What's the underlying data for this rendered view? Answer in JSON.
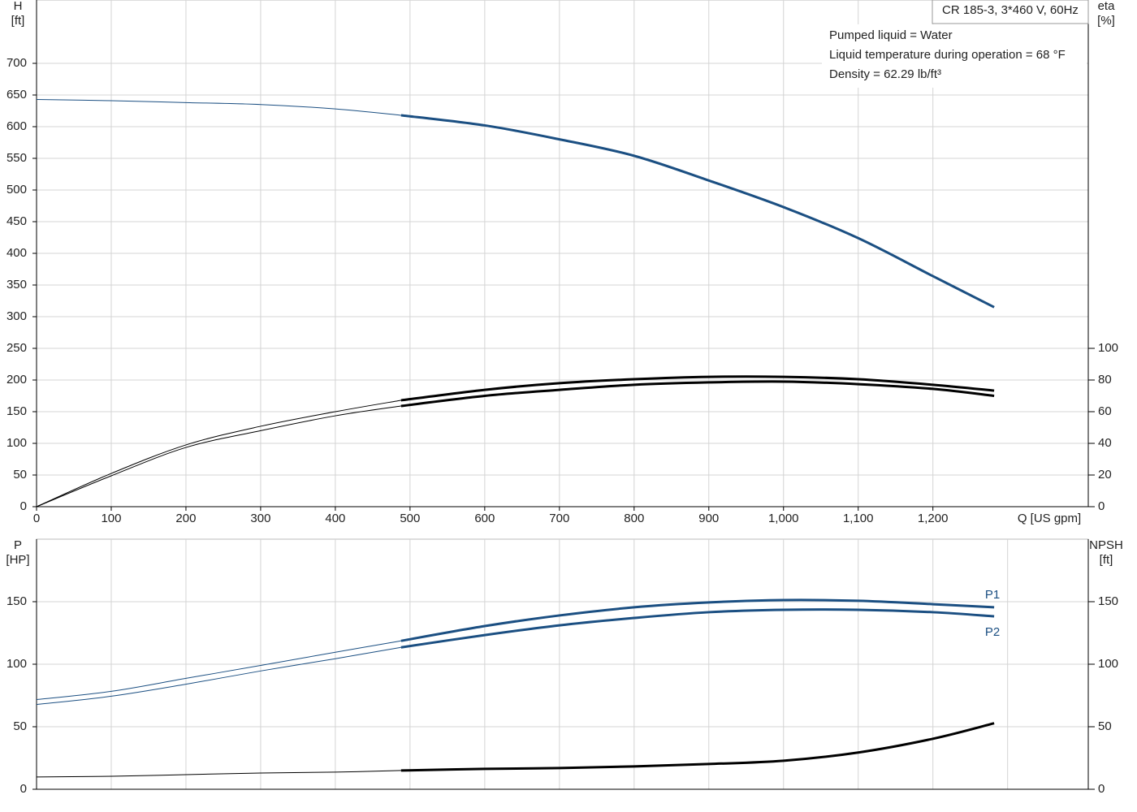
{
  "chart_data": [
    {
      "type": "line",
      "title": "CR 185-3, 3*460 V, 60Hz",
      "annotations": [
        "Pumped liquid = Water",
        "Liquid temperature during operation = 68 °F",
        "Density = 62.29 lb/ft³"
      ],
      "ylabel": [
        "H",
        "[ft]"
      ],
      "y2label": [
        "eta",
        "[%]"
      ],
      "xlabel": "Q [US gpm]",
      "x": [
        0,
        100,
        200,
        300,
        400,
        488,
        600,
        700,
        800,
        900,
        1000,
        1100,
        1200,
        1282
      ],
      "duty_range": [
        488,
        1282
      ],
      "series": [
        {
          "color": "#1b4f82",
          "axis": "y",
          "values": [
            643,
            641,
            638,
            635,
            628,
            618,
            602,
            580,
            554,
            515,
            473,
            424,
            364,
            315
          ]
        },
        {
          "color": "#000000",
          "axis": "y2",
          "values": [
            0,
            21,
            39,
            50.8,
            60,
            67.2,
            73.8,
            78,
            80.5,
            82,
            82,
            80.5,
            77,
            73.3
          ]
        },
        {
          "color": "#000000",
          "axis": "y2",
          "values": [
            0,
            19.5,
            37.4,
            48,
            57.4,
            63.6,
            70,
            73.8,
            77,
            78.5,
            79,
            77.4,
            74.4,
            70
          ]
        }
      ],
      "xlim": [
        0,
        1408
      ],
      "ylim": [
        0,
        800
      ],
      "y2lim": [
        0,
        320
      ],
      "xticks": [
        0,
        100,
        200,
        300,
        400,
        500,
        600,
        700,
        800,
        900,
        {
          "value": 1000,
          "label": "1,000"
        },
        {
          "value": 1100,
          "label": "1,100"
        },
        {
          "value": 1200,
          "label": "1,200"
        }
      ],
      "yticks": [
        0,
        50,
        100,
        150,
        200,
        250,
        300,
        350,
        400,
        450,
        500,
        550,
        600,
        650,
        700
      ],
      "y2ticks": [
        0,
        20,
        40,
        60,
        80,
        100
      ],
      "grid": true
    },
    {
      "type": "line",
      "ylabel": [
        "P",
        "[HP]"
      ],
      "y2label": [
        "NPSH",
        "[ft]"
      ],
      "x": [
        0,
        100,
        200,
        300,
        400,
        488,
        600,
        700,
        800,
        900,
        1000,
        1100,
        1200,
        1282
      ],
      "duty_range": [
        488,
        1282
      ],
      "series": [
        {
          "name": "P1",
          "color": "#1b4f82",
          "axis": "y",
          "values": [
            71.7,
            78.3,
            88.7,
            99,
            109.6,
            118.7,
            130.5,
            139,
            145.5,
            149.4,
            151.3,
            150.7,
            148,
            145.5
          ]
        },
        {
          "name": "P2",
          "color": "#1b4f82",
          "axis": "y",
          "values": [
            67.8,
            74.4,
            84,
            94.6,
            104.4,
            113.5,
            123.3,
            131.1,
            137,
            141.6,
            143.5,
            143.5,
            141.6,
            138.3
          ]
        },
        {
          "color": "#000000",
          "axis": "y2",
          "values": [
            9.8,
            10.4,
            11.7,
            13,
            13.7,
            15,
            16.3,
            17,
            18.3,
            20.2,
            22.8,
            29.4,
            40.4,
            52.8
          ]
        }
      ],
      "xlim": [
        0,
        1408
      ],
      "ylim": [
        0,
        200
      ],
      "y2lim": [
        0,
        200
      ],
      "xgrid": [
        0,
        100,
        200,
        300,
        400,
        500,
        600,
        700,
        800,
        900,
        1000,
        1100,
        1200,
        1300
      ],
      "yticks": [
        0,
        50,
        100,
        150
      ],
      "y2ticks": [
        0,
        50,
        100,
        150
      ],
      "grid": true
    }
  ]
}
